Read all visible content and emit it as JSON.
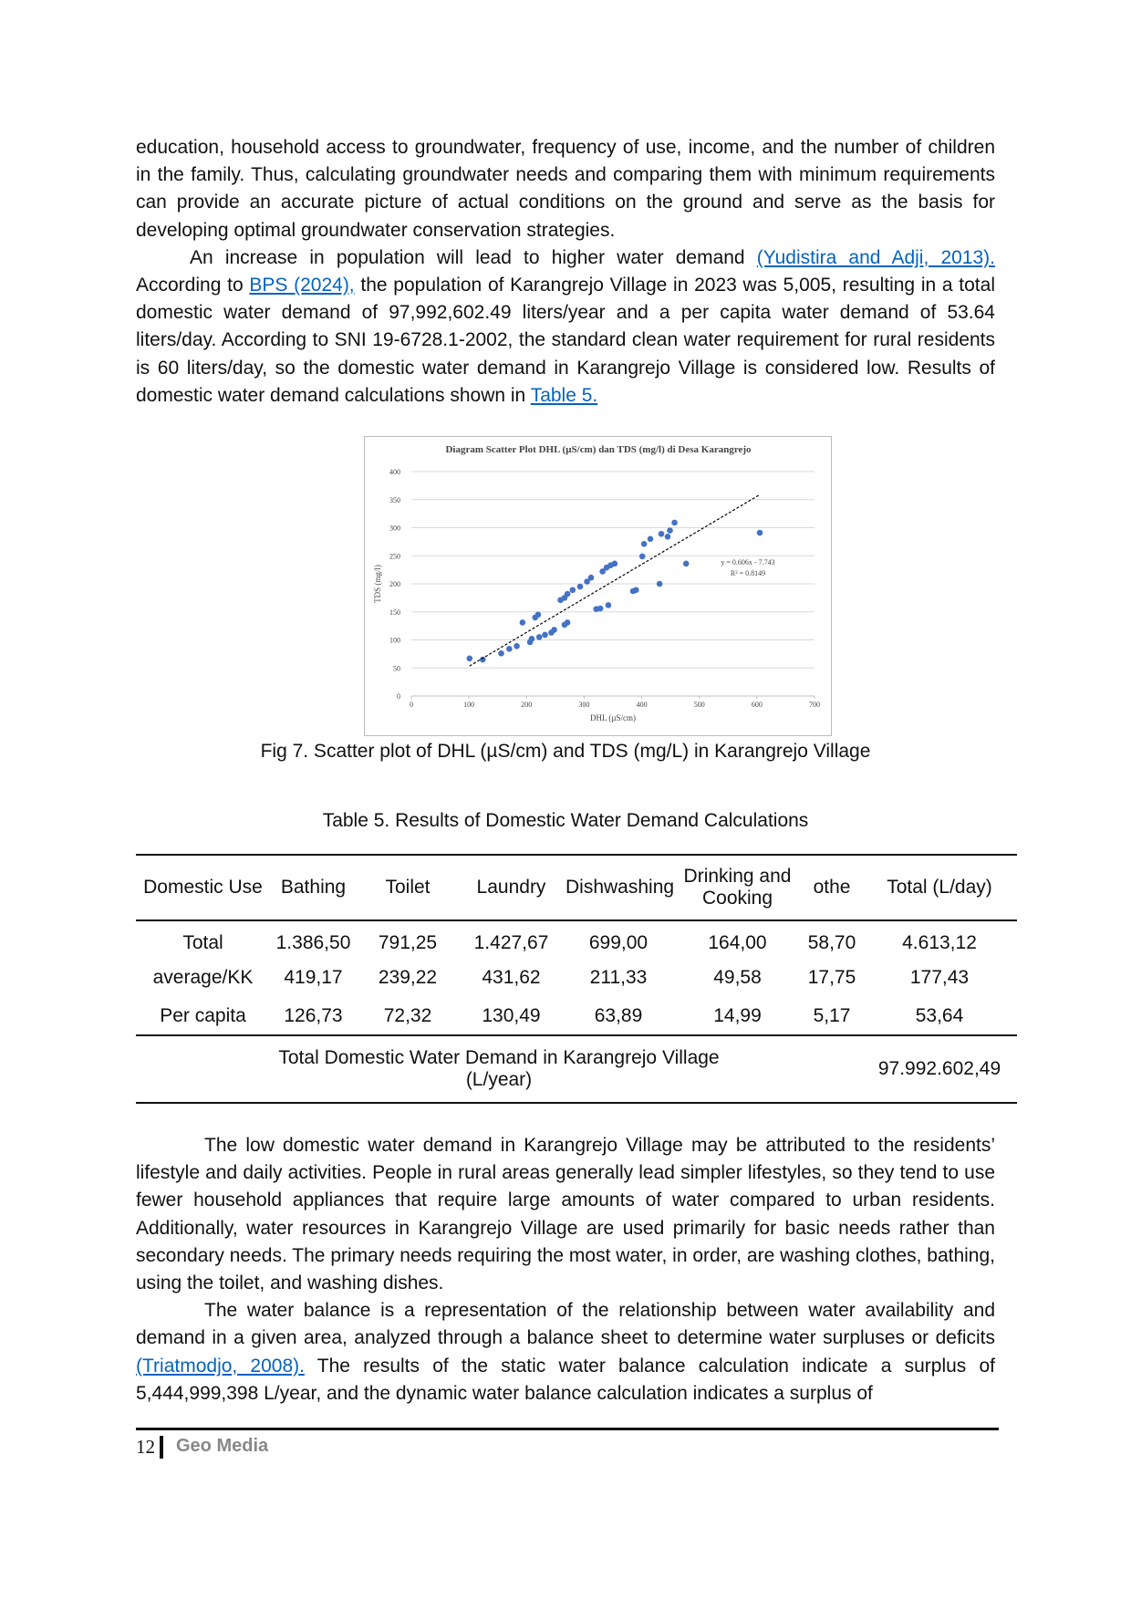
{
  "paragraphs": [
    [
      {
        "text": "education, household access to groundwater, frequency of use, income, and the number of children in the family. Thus, calculating groundwater needs and comparing them with minimum requirements can provide an accurate picture of actual conditions on the ground and serve as the basis for developing optimal groundwater conservation strategies."
      }
    ],
    [
      {
        "text": "An increase in population will lead to higher water demand "
      },
      {
        "link": "(Yudistira and Adji, 2013)."
      },
      {
        "text": " According to "
      },
      {
        "link": "BPS (2024),"
      },
      {
        "text": " the population of Karangrejo Village in 2023 was 5,005, resulting in a total domestic water demand of 97,992,602.49 liters/year and a per capita water demand of 53.64 liters/day. According to SNI 19-6728.1-2002, the standard clean water requirement for rural residents is 60 liters/day, so the domestic water demand in Karangrejo Village is considered low. Results of domestic water demand calculations shown in "
      },
      {
        "link": "Table 5."
      }
    ]
  ],
  "figure_caption": "Fig 7. Scatter plot of DHL (µS/cm) and TDS (mg/L) in Karangrejo Village",
  "chart_data": {
    "type": "scatter",
    "title": "Diagram Scatter Plot DHL (µS/cm) dan TDS (mg/l) di Desa Karangrejo",
    "x_label": "DHL (µS/cm)",
    "y_label": "TDS (mg/l)",
    "x": [
      101,
      124,
      156,
      170,
      183,
      193,
      215,
      220,
      206,
      209,
      222,
      232,
      243,
      248,
      266,
      271,
      259,
      266,
      271,
      280,
      293,
      305,
      312,
      321,
      328,
      342,
      332,
      339,
      346,
      353,
      385,
      390,
      401,
      404,
      415,
      431,
      434,
      445,
      449,
      457,
      477,
      605
    ],
    "series": [
      {
        "name": "TDS",
        "color": "#4472c4",
        "values": [
          67,
          65,
          76,
          84,
          89,
          131,
          140,
          145,
          96,
          102,
          105,
          109,
          113,
          118,
          127,
          131,
          171,
          175,
          182,
          189,
          195,
          204,
          211,
          155,
          156,
          162,
          222,
          229,
          233,
          236,
          187,
          189,
          249,
          271,
          280,
          200,
          289,
          284,
          295,
          309,
          236,
          291
        ]
      }
    ],
    "trendline": {
      "equation": "y = 0.606x - 7.743",
      "r2_label": "R² = 0.8149",
      "slope": 0.606,
      "intercept": -7.743
    },
    "xlim": [
      0,
      700
    ],
    "xticks": [
      0,
      100,
      200,
      300,
      400,
      500,
      600,
      700
    ],
    "ylim": [
      0,
      400
    ],
    "yticks": [
      0,
      50,
      100,
      150,
      200,
      250,
      300,
      350,
      400
    ],
    "grid": true
  },
  "table": {
    "title": "Table 5. Results of Domestic Water Demand Calculations",
    "header": [
      "Domestic Use",
      "Bathing",
      "Toilet",
      "Laundry",
      "Dishwashing",
      "Drinking and Cooking",
      "othe",
      "Total (L/day)"
    ],
    "rows": [
      [
        "Total",
        "1.386,50",
        "791,25",
        "1.427,67",
        "699,00",
        "164,00",
        "58,70",
        "4.613,12"
      ],
      [
        "average/KK",
        "419,17",
        "239,22",
        "431,62",
        "211,33",
        "49,58",
        "17,75",
        "177,43"
      ],
      [
        "Per capita",
        "126,73",
        "72,32",
        "130,49",
        "63,89",
        "14,99",
        "5,17",
        "53,64"
      ]
    ],
    "footer": [
      "Total Domestic Water Demand in Karangrejo Village (L/year)",
      "97.992.602,49"
    ]
  },
  "paragraphs_after": [
    [
      {
        "text": "The low domestic water demand in Karangrejo Village may be attributed to the residents’ lifestyle and daily activities. People in rural areas generally lead simpler lifestyles, so they tend to use fewer household appliances that require large amounts of water compared to urban residents. Additionally, water resources in Karangrejo Village are used primarily for basic needs rather than secondary needs. The primary needs requiring the most water, in order, are washing clothes, bathing, using the toilet, and washing dishes."
      }
    ],
    [
      {
        "text": "The water balance is a representation of the relationship between water availability and demand in a given area, analyzed through a balance sheet to determine water surpluses or deficits "
      },
      {
        "link": "(Triatmodjo, 2008)."
      },
      {
        "text": " The results of the static water balance calculation indicate a surplus of 5,444,999,398 L/year, and the dynamic water balance calculation indicates a surplus of"
      }
    ]
  ],
  "footer": {
    "page_number": "12",
    "journal": "Geo Media"
  }
}
